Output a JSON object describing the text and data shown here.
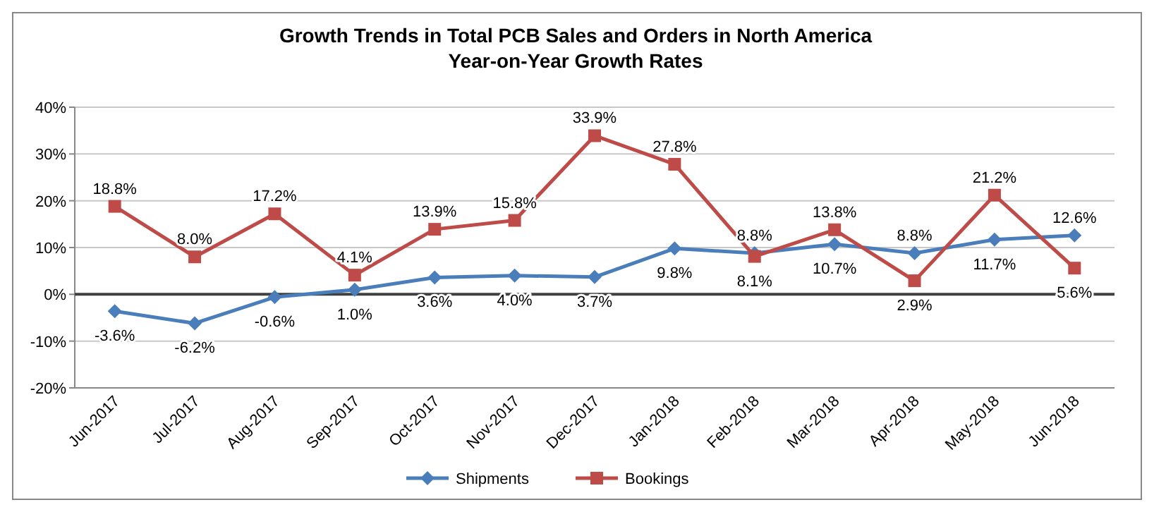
{
  "chart_data": {
    "type": "line",
    "title": "Growth Trends in Total PCB Sales and Orders in North America",
    "subtitle": "Year-on-Year Growth Rates",
    "categories": [
      "Jun-2017",
      "Jul-2017",
      "Aug-2017",
      "Sep-2017",
      "Oct-2017",
      "Nov-2017",
      "Dec-2017",
      "Jan-2018",
      "Feb-2018",
      "Mar-2018",
      "Apr-2018",
      "May-2018",
      "Jun-2018"
    ],
    "series": [
      {
        "name": "Shipments",
        "color": "#4a7ebb",
        "marker": "diamond",
        "values": [
          -3.6,
          -6.2,
          -0.6,
          1.0,
          3.6,
          4.0,
          3.7,
          9.8,
          8.8,
          10.7,
          8.8,
          11.7,
          12.6
        ],
        "value_labels": [
          "-3.6%",
          "-6.2%",
          "-0.6%",
          "1.0%",
          "3.6%",
          "4.0%",
          "3.7%",
          "9.8%",
          "8.8%",
          "10.7%",
          "8.8%",
          "11.7%",
          "12.6%"
        ]
      },
      {
        "name": "Bookings",
        "color": "#be4b48",
        "marker": "square",
        "values": [
          18.8,
          8.0,
          17.2,
          4.1,
          13.9,
          15.8,
          33.9,
          27.8,
          8.1,
          13.8,
          2.9,
          21.2,
          5.6
        ],
        "value_labels": [
          "18.8%",
          "8.0%",
          "17.2%",
          "4.1%",
          "13.9%",
          "15.8%",
          "33.9%",
          "27.8%",
          "8.1%",
          "13.8%",
          "2.9%",
          "21.2%",
          "5.6%"
        ]
      }
    ],
    "ylim": [
      -20,
      40
    ],
    "yticks": [
      {
        "value": -20,
        "label": "-20%"
      },
      {
        "value": -10,
        "label": "-10%"
      },
      {
        "value": 0,
        "label": "0%"
      },
      {
        "value": 10,
        "label": "10%"
      },
      {
        "value": 20,
        "label": "20%"
      },
      {
        "value": 30,
        "label": "30%"
      },
      {
        "value": 40,
        "label": "40%"
      }
    ],
    "ref_lines": [
      {
        "axis": "y",
        "value": 0,
        "label": null,
        "color": "#404040"
      }
    ],
    "grid": "y",
    "legend": "bottom"
  }
}
